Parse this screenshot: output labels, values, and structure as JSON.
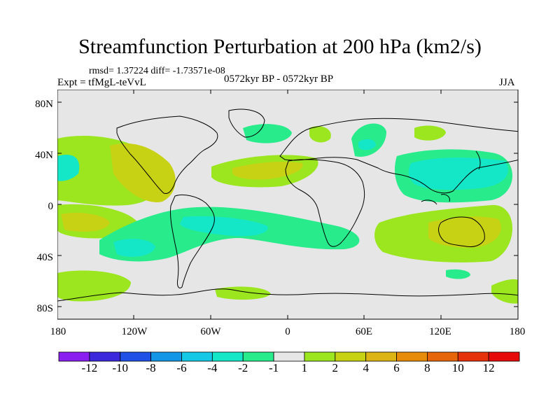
{
  "title": "Streamfunction Perturbation at 200 hPa (km2/s)",
  "stats": "rmsd= 1.37224 diff= -1.73571e-08",
  "experiment": "Expt = tfMgL-teVvL",
  "period": "0572kyr BP - 0572kyr BP",
  "season": "JJA",
  "lat_labels": [
    "80N",
    "40N",
    "0",
    "40S",
    "80S"
  ],
  "lon_labels": [
    "180",
    "120W",
    "60W",
    "0",
    "60E",
    "120E",
    "180"
  ],
  "colorbar": {
    "labels": [
      "-12",
      "-10",
      "-8",
      "-6",
      "-4",
      "-2",
      "-1",
      "1",
      "2",
      "4",
      "6",
      "8",
      "10",
      "12"
    ],
    "colors": [
      "#8a1ef0",
      "#3c28dc",
      "#2050e6",
      "#1496e6",
      "#14c8e6",
      "#14e6c8",
      "#28eb8c",
      "#e6e6e6",
      "#9be61e",
      "#c8d214",
      "#dcb414",
      "#e68c0a",
      "#e6640a",
      "#e6320a",
      "#e60a0a"
    ]
  }
}
